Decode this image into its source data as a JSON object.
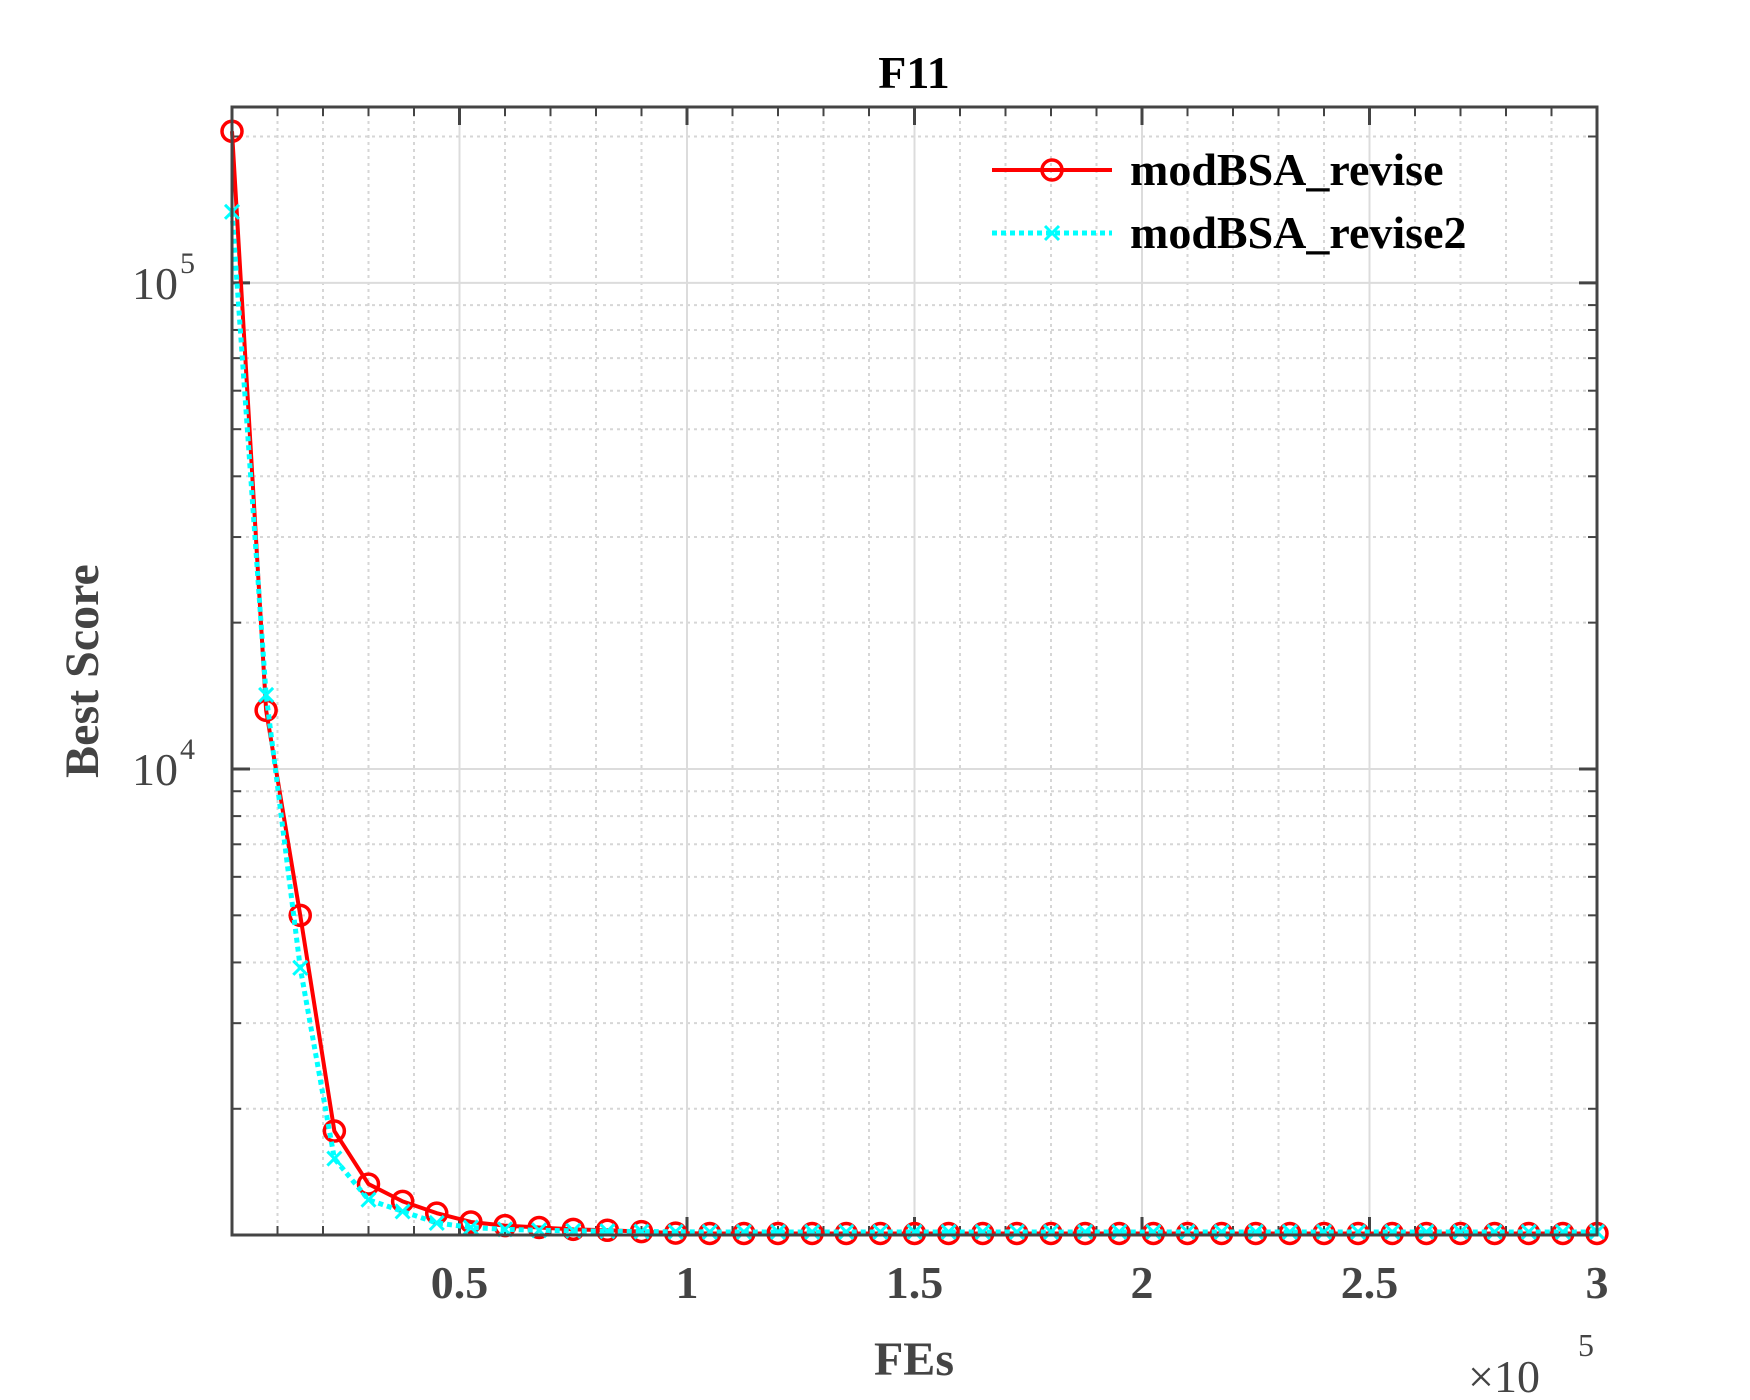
{
  "chart_data": {
    "type": "line",
    "title": "F11",
    "xlabel": "FEs",
    "ylabel": "Best Score",
    "x_exponent_label": "×10",
    "x_exponent_power": "5",
    "xlim": [
      0,
      300000
    ],
    "ylim": [
      1100,
      230000
    ],
    "yscale": "log",
    "grid": true,
    "minor_grid": true,
    "legend_position": "top-right",
    "x_ticks": [
      {
        "value": 50000,
        "label": "0.5"
      },
      {
        "value": 100000,
        "label": "1"
      },
      {
        "value": 150000,
        "label": "1.5"
      },
      {
        "value": 200000,
        "label": "2"
      },
      {
        "value": 250000,
        "label": "2.5"
      },
      {
        "value": 300000,
        "label": "3"
      }
    ],
    "y_ticks": [
      {
        "value": 10000,
        "base": "10",
        "power": "4"
      },
      {
        "value": 100000,
        "base": "10",
        "power": "5"
      }
    ],
    "series": [
      {
        "name": "modBSA_revise",
        "color": "#ff0000",
        "line_style": "solid",
        "marker": "circle",
        "x": [
          0,
          7500,
          15000,
          22500,
          30000,
          37500,
          45000,
          52500,
          60000,
          67500,
          75000,
          82500,
          90000,
          97500,
          105000,
          112500,
          120000,
          127500,
          135000,
          142500,
          150000,
          157500,
          165000,
          172500,
          180000,
          187500,
          195000,
          202500,
          210000,
          217500,
          225000,
          232500,
          240000,
          247500,
          255000,
          262500,
          270000,
          277500,
          285000,
          292500,
          300000
        ],
        "y": [
          205000,
          13200,
          5000,
          1800,
          1400,
          1290,
          1220,
          1170,
          1150,
          1140,
          1130,
          1125,
          1118,
          1110,
          1108,
          1108,
          1108,
          1108,
          1108,
          1108,
          1108,
          1108,
          1108,
          1108,
          1108,
          1108,
          1108,
          1108,
          1108,
          1108,
          1108,
          1108,
          1108,
          1108,
          1108,
          1108,
          1108,
          1108,
          1108,
          1108,
          1108
        ]
      },
      {
        "name": "modBSA_revise2",
        "color": "#00ffff",
        "line_style": "dotted",
        "marker": "x",
        "x": [
          0,
          7500,
          15000,
          22500,
          30000,
          37500,
          45000,
          52500,
          60000,
          67500,
          75000,
          82500,
          90000,
          97500,
          105000,
          112500,
          120000,
          127500,
          135000,
          142500,
          150000,
          157500,
          165000,
          172500,
          180000,
          187500,
          195000,
          202500,
          210000,
          217500,
          225000,
          232500,
          240000,
          247500,
          255000,
          262500,
          270000,
          277500,
          285000,
          292500,
          300000
        ],
        "y": [
          140000,
          14200,
          3900,
          1580,
          1300,
          1230,
          1165,
          1140,
          1130,
          1125,
          1122,
          1120,
          1118,
          1117,
          1116,
          1116,
          1116,
          1116,
          1116,
          1116,
          1116,
          1116,
          1116,
          1116,
          1116,
          1116,
          1116,
          1116,
          1116,
          1116,
          1116,
          1116,
          1116,
          1116,
          1116,
          1116,
          1116,
          1116,
          1116,
          1116,
          1116
        ]
      }
    ]
  }
}
